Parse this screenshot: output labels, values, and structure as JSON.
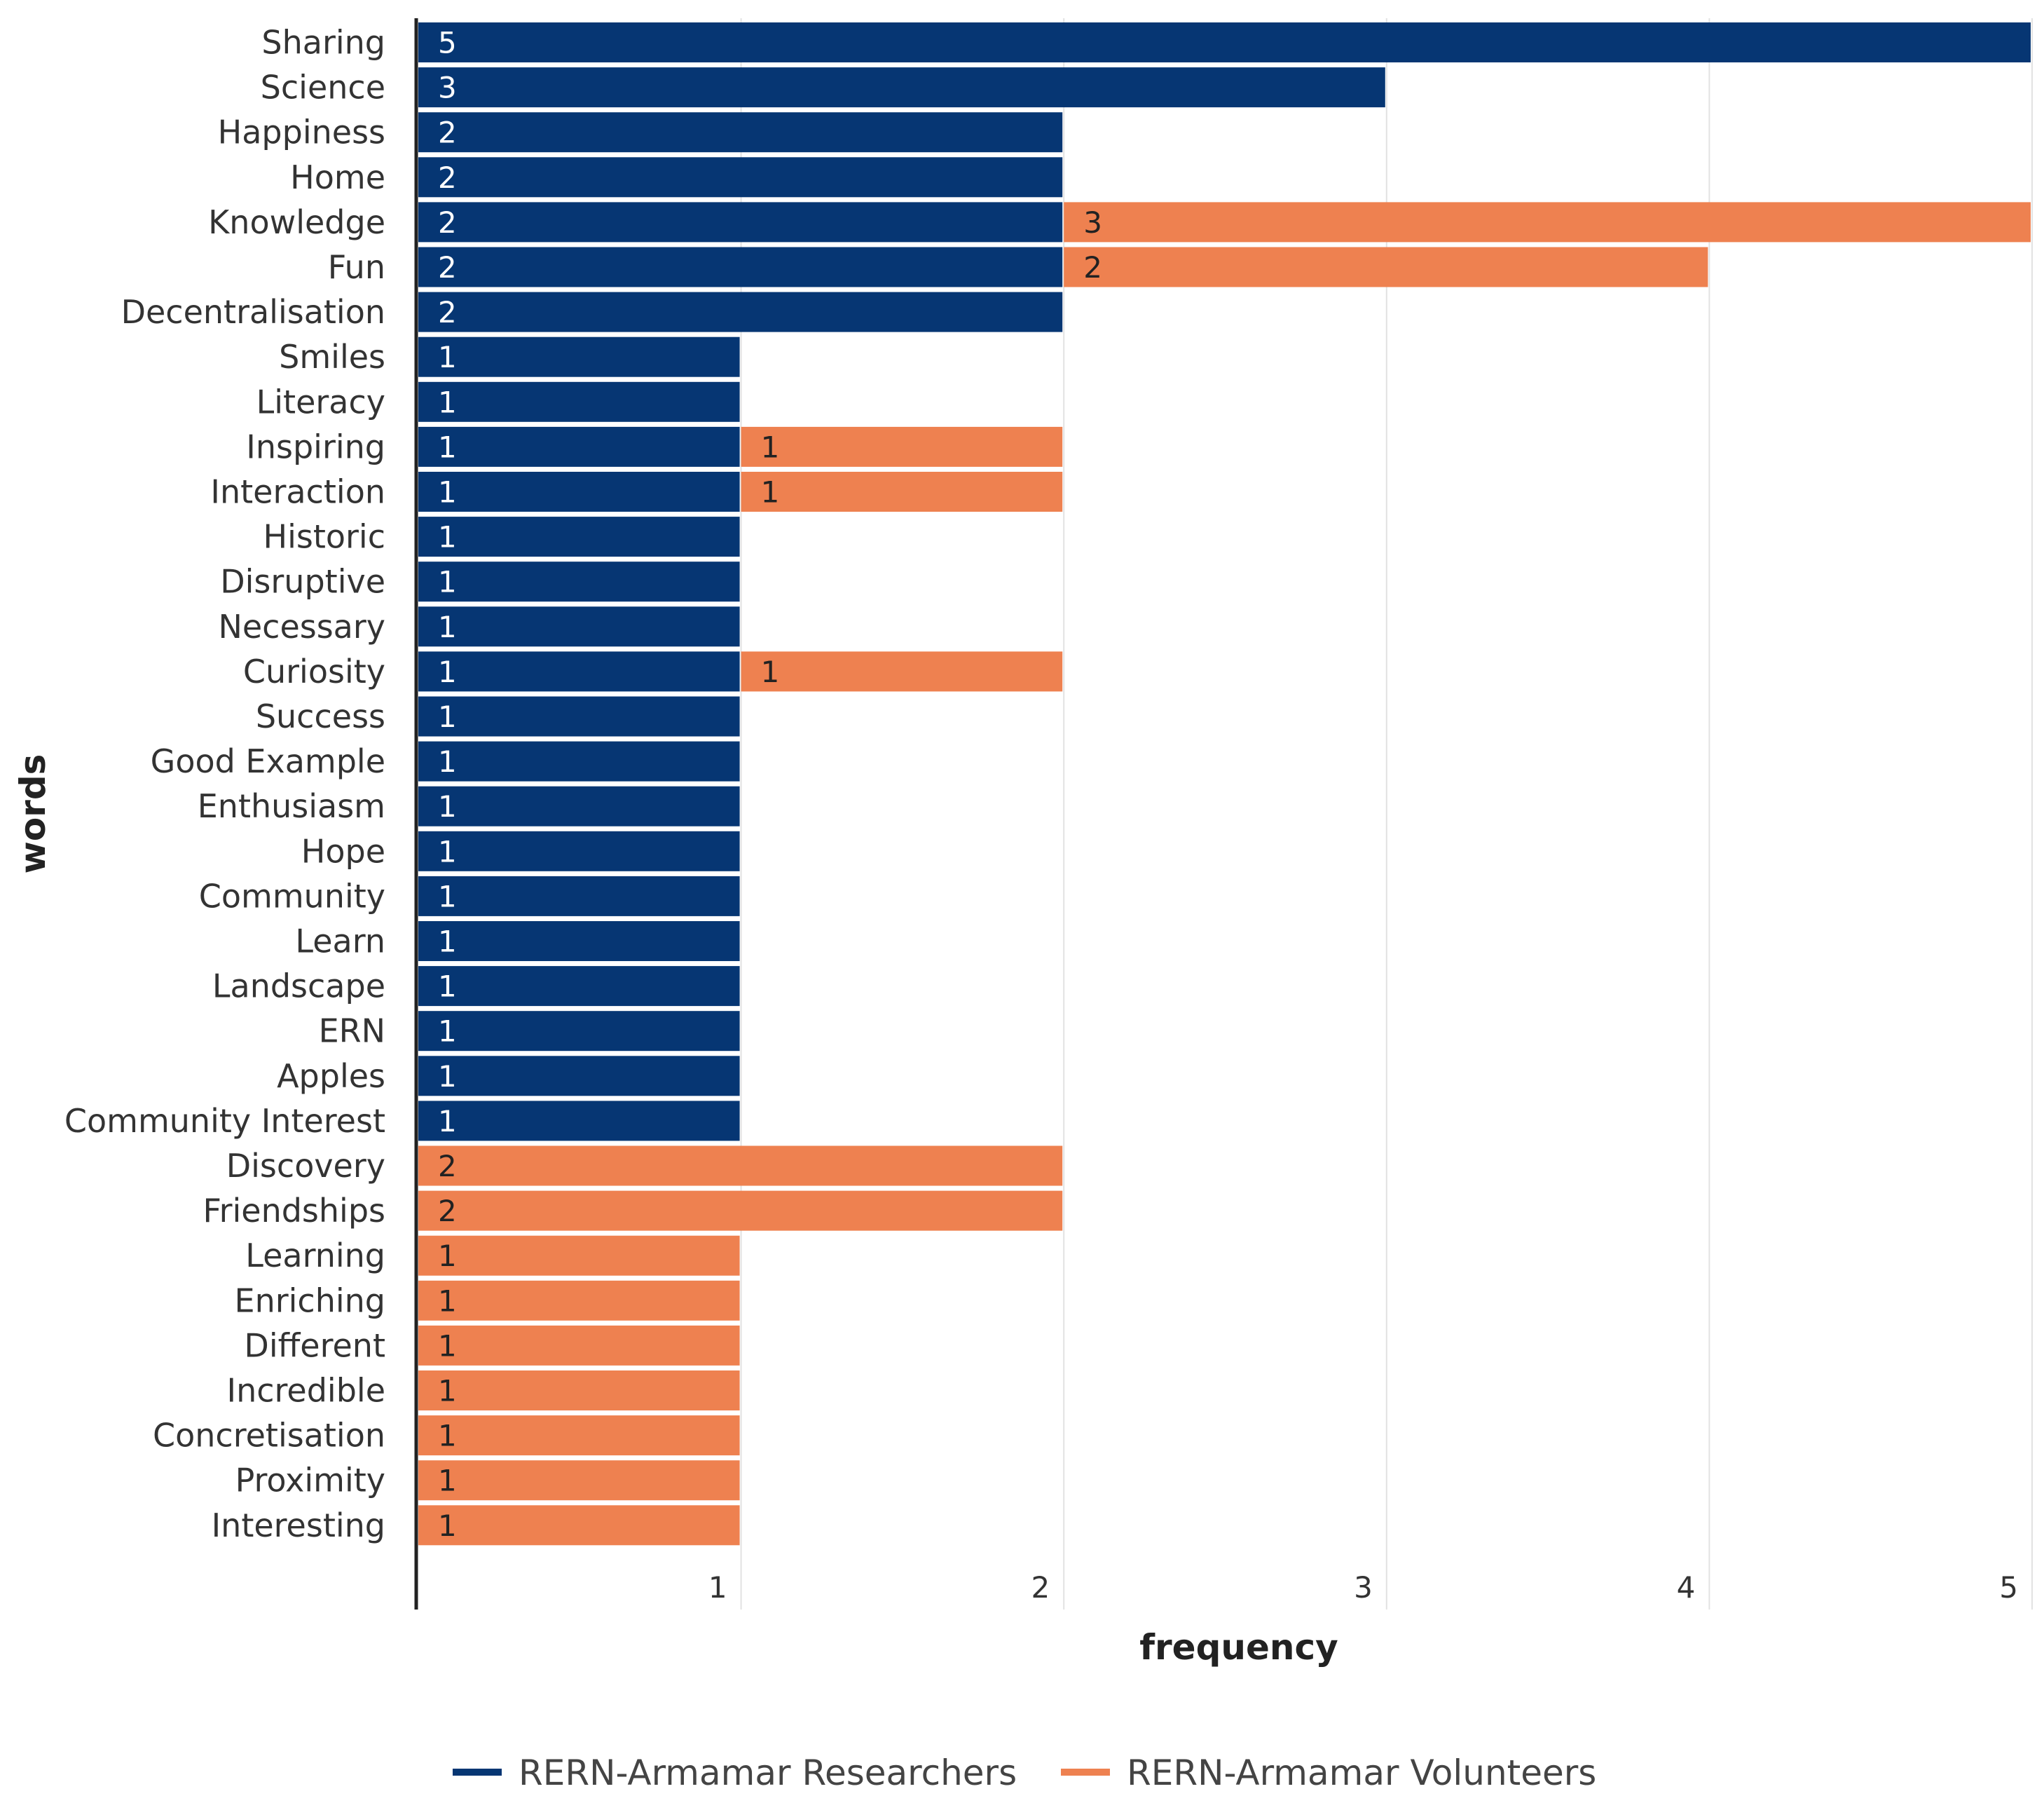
{
  "chart_data": {
    "type": "bar",
    "orientation": "horizontal",
    "stacked": true,
    "title": "",
    "xlabel": "frequency",
    "ylabel": "words",
    "xlim": [
      0,
      5
    ],
    "xticks": [
      1,
      2,
      3,
      4,
      5
    ],
    "grid": true,
    "legend_position": "bottom",
    "categories": [
      "Sharing",
      "Science",
      "Happiness",
      "Home",
      "Knowledge",
      "Fun",
      "Decentralisation",
      "Smiles",
      "Literacy",
      "Inspiring",
      "Interaction",
      "Historic",
      "Disruptive",
      "Necessary",
      "Curiosity",
      "Success",
      "Good Example",
      "Enthusiasm",
      "Hope",
      "Community",
      "Learn",
      "Landscape",
      "ERN",
      "Apples",
      "Community Interest",
      "Discovery",
      "Friendships",
      "Learning",
      "Enriching",
      "Different",
      "Incredible",
      "Concretisation",
      "Proximity",
      "Interesting"
    ],
    "series": [
      {
        "name": "RERN-Armamar Researchers",
        "color": "#063673",
        "label_color": "#ffffff",
        "values": [
          5,
          3,
          2,
          2,
          2,
          2,
          2,
          1,
          1,
          1,
          1,
          1,
          1,
          1,
          1,
          1,
          1,
          1,
          1,
          1,
          1,
          1,
          1,
          1,
          1,
          0,
          0,
          0,
          0,
          0,
          0,
          0,
          0,
          0
        ]
      },
      {
        "name": "RERN-Armamar Volunteers",
        "color": "#EE8150",
        "label_color": "#222222",
        "values": [
          0,
          0,
          0,
          0,
          3,
          2,
          0,
          0,
          0,
          1,
          1,
          0,
          0,
          0,
          1,
          0,
          0,
          0,
          0,
          0,
          0,
          0,
          0,
          0,
          0,
          2,
          2,
          1,
          1,
          1,
          1,
          1,
          1,
          1
        ]
      }
    ]
  }
}
